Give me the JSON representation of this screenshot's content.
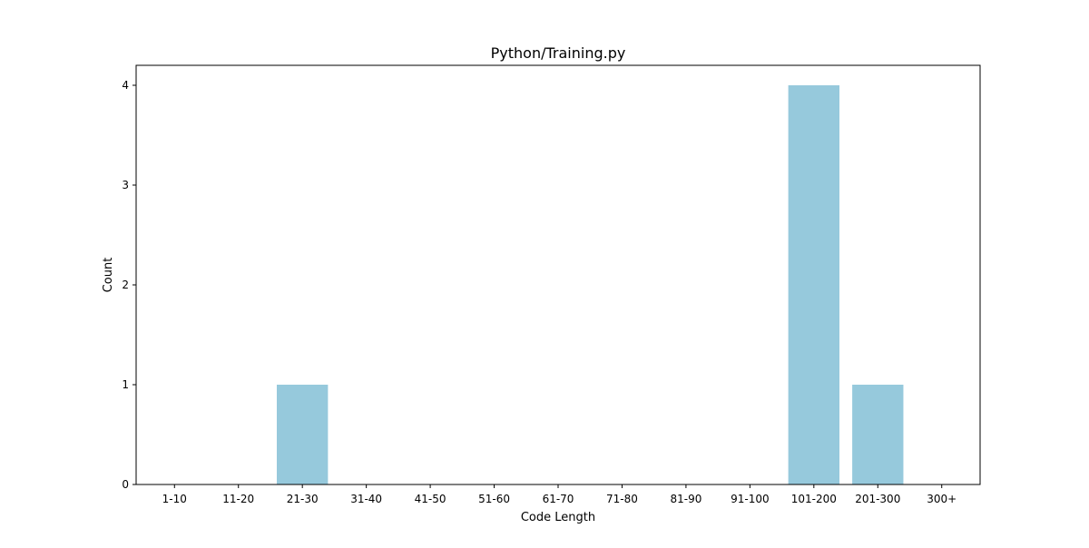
{
  "chart_data": {
    "type": "bar",
    "title": "Python/Training.py",
    "xlabel": "Code Length",
    "ylabel": "Count",
    "categories": [
      "1-10",
      "11-20",
      "21-30",
      "31-40",
      "41-50",
      "51-60",
      "61-70",
      "71-80",
      "81-90",
      "91-100",
      "101-200",
      "201-300",
      "300+"
    ],
    "values": [
      0,
      0,
      1,
      0,
      0,
      0,
      0,
      0,
      0,
      0,
      4,
      1,
      0
    ],
    "yticks": [
      "0",
      "1",
      "2",
      "3",
      "4"
    ],
    "ylim": [
      0,
      4.2
    ],
    "grid": false,
    "bar_color": "#96c9dc"
  }
}
